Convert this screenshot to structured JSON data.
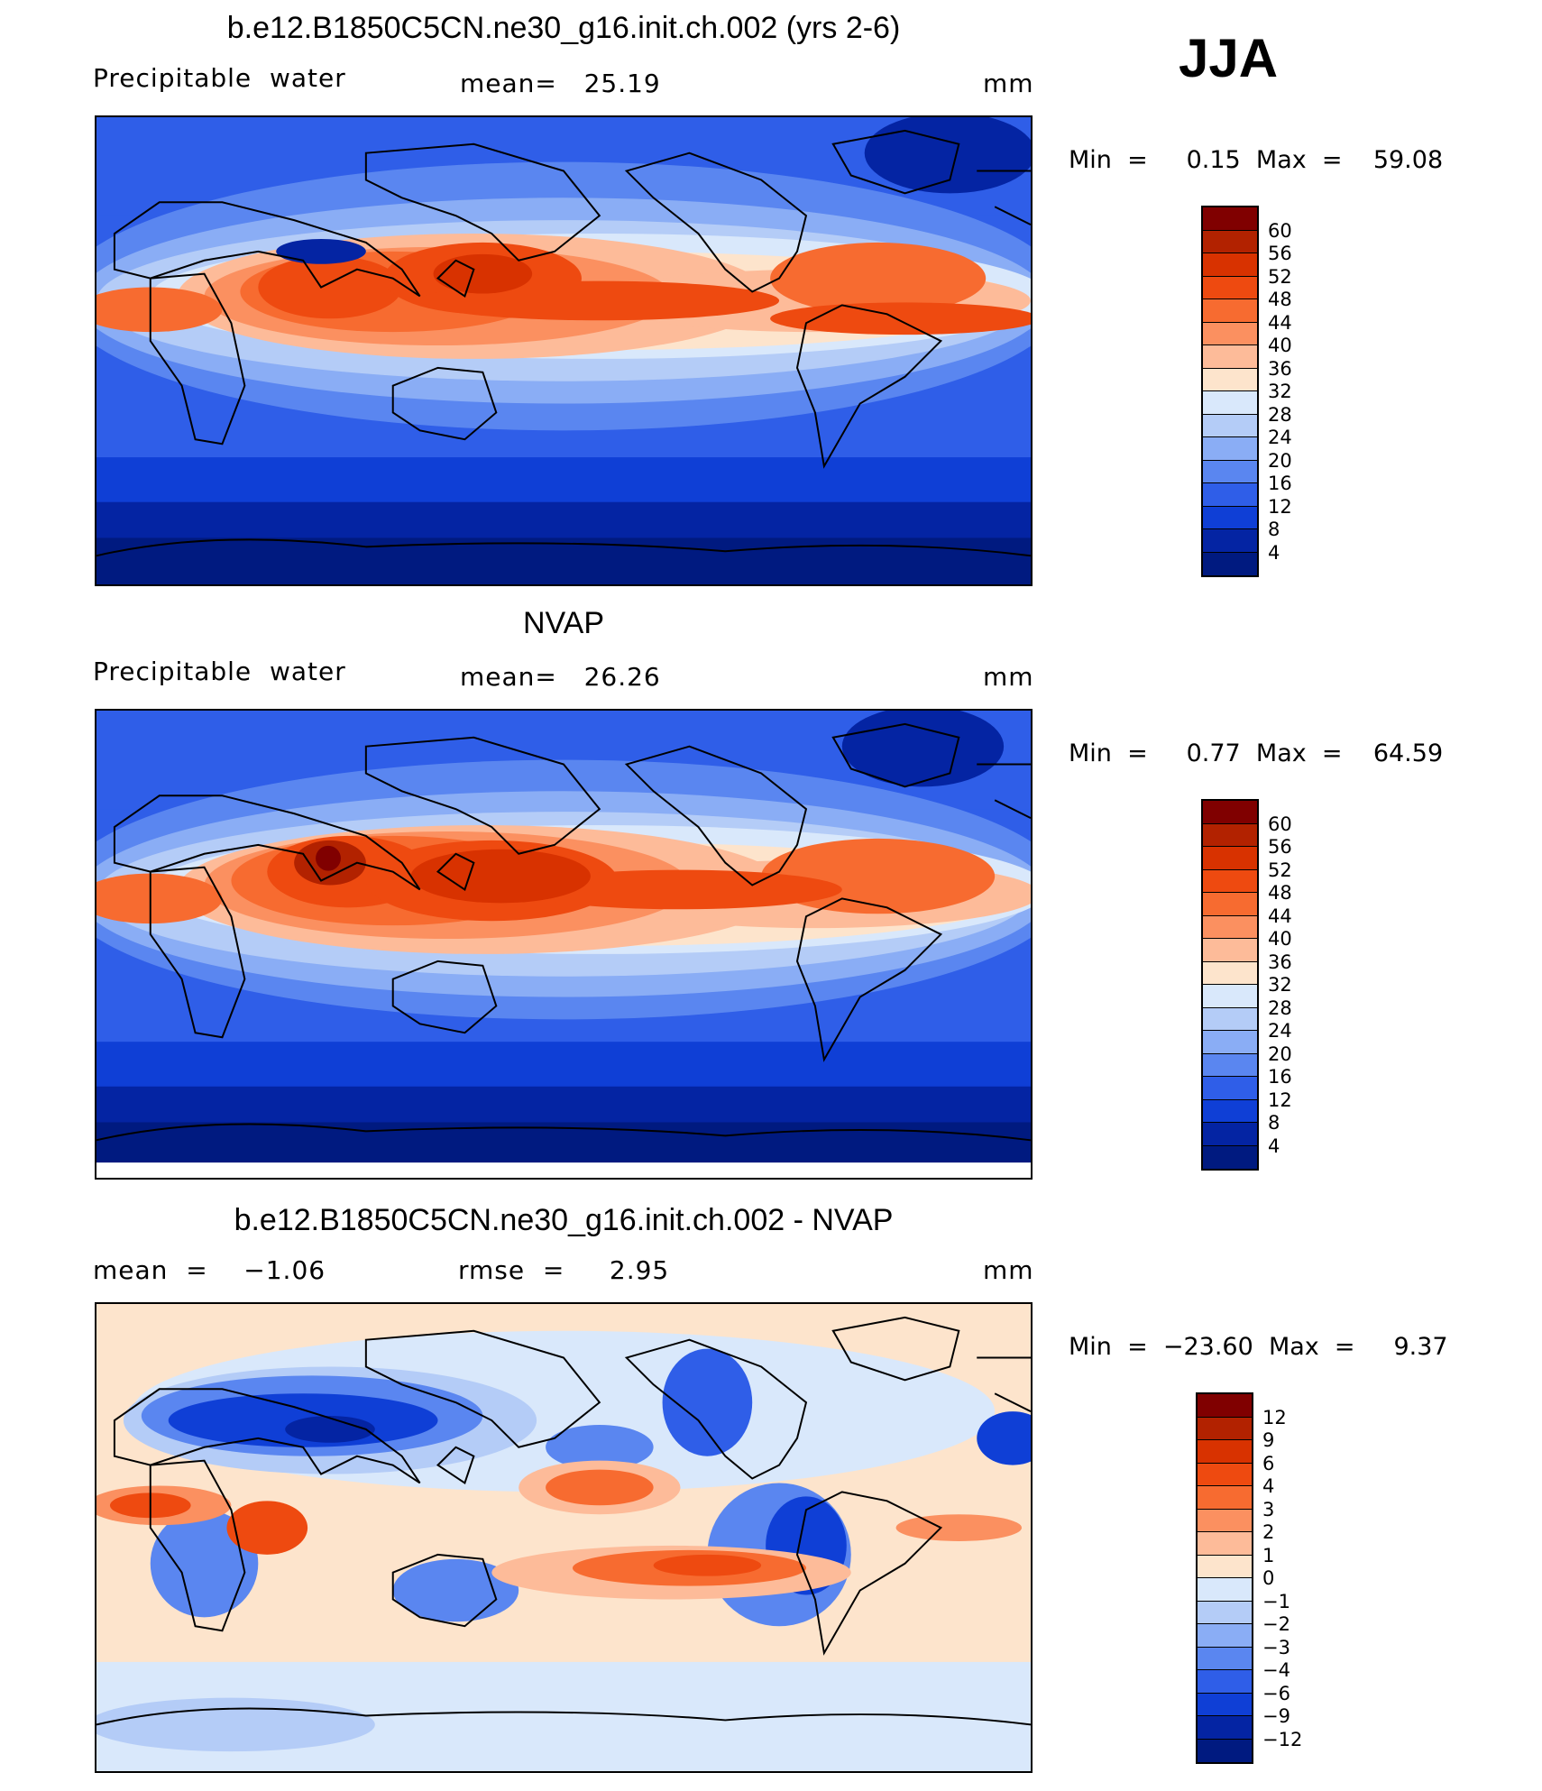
{
  "season": "JJA",
  "panels": [
    {
      "title": "b.e12.B1850C5CN.ne30_g16.init.ch.002 (yrs 2-6)",
      "left_label": "Precipitable  water",
      "mid_label": "mean=   25.19",
      "right_label": "mm",
      "minmax": "Min  =     0.15  Max  =    59.08",
      "colorbar": {
        "levels": [
          "60",
          "56",
          "52",
          "48",
          "44",
          "40",
          "36",
          "32",
          "28",
          "24",
          "20",
          "16",
          "12",
          "8",
          "4"
        ],
        "colors": [
          "#800000",
          "#b22200",
          "#d83200",
          "#ee4a10",
          "#f76b30",
          "#fb9060",
          "#fdbb99",
          "#fde4cc",
          "#d9e8fb",
          "#b4ccf7",
          "#8aadf5",
          "#5a86f0",
          "#2f5ee8",
          "#0f3fd6",
          "#0424a3",
          "#001a80"
        ]
      }
    },
    {
      "title": "NVAP",
      "left_label": "Precipitable  water",
      "mid_label": "mean=   26.26",
      "right_label": "mm",
      "minmax": "Min  =     0.77  Max  =    64.59",
      "colorbar": {
        "levels": [
          "60",
          "56",
          "52",
          "48",
          "44",
          "40",
          "36",
          "32",
          "28",
          "24",
          "20",
          "16",
          "12",
          "8",
          "4"
        ],
        "colors": [
          "#800000",
          "#b22200",
          "#d83200",
          "#ee4a10",
          "#f76b30",
          "#fb9060",
          "#fdbb99",
          "#fde4cc",
          "#d9e8fb",
          "#b4ccf7",
          "#8aadf5",
          "#5a86f0",
          "#2f5ee8",
          "#0f3fd6",
          "#0424a3",
          "#001a80"
        ]
      }
    },
    {
      "title": "b.e12.B1850C5CN.ne30_g16.init.ch.002 - NVAP",
      "left_label": "mean  =    −1.06",
      "mid_label": "rmse  =     2.95",
      "right_label": "mm",
      "minmax": "Min  =  −23.60  Max  =     9.37",
      "colorbar": {
        "levels": [
          "12",
          "9",
          "6",
          "4",
          "3",
          "2",
          "1",
          "0",
          "−1",
          "−2",
          "−3",
          "−4",
          "−6",
          "−9",
          "−12"
        ],
        "colors": [
          "#800000",
          "#b22200",
          "#d83200",
          "#ee4a10",
          "#f76b30",
          "#fb9060",
          "#fdbb99",
          "#fde4cc",
          "#d9e8fb",
          "#b4ccf7",
          "#8aadf5",
          "#5a86f0",
          "#2f5ee8",
          "#0f3fd6",
          "#0424a3",
          "#001a80"
        ]
      }
    }
  ]
}
